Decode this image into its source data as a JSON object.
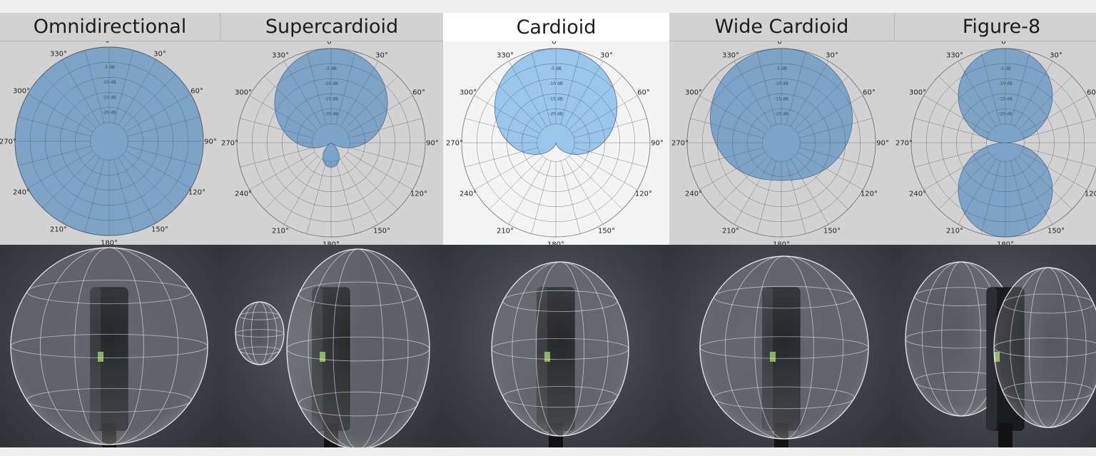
{
  "selected_tab": "Cardioid",
  "polar_labels": {
    "angles": [
      "0°",
      "30°",
      "60°",
      "90°",
      "120°",
      "150°",
      "180°",
      "210°",
      "240°",
      "270°",
      "300°",
      "330°"
    ],
    "rings": [
      "-5 dB",
      "-10 dB",
      "-15 dB",
      "-20 dB"
    ]
  },
  "patterns": [
    {
      "id": "omni",
      "title": "Omnidirectional",
      "shape": "omni"
    },
    {
      "id": "super",
      "title": "Supercardioid",
      "shape": "supercardioid"
    },
    {
      "id": "cardioid",
      "title": "Cardioid",
      "shape": "cardioid"
    },
    {
      "id": "wide",
      "title": "Wide Cardioid",
      "shape": "wide-cardioid"
    },
    {
      "id": "fig8",
      "title": "Figure-8",
      "shape": "figure-8"
    }
  ],
  "colors": {
    "lobe_fill": "#6f9cc6",
    "lobe_fill_active": "#8ec2ea",
    "grid": "#555555",
    "photo_bg": "#45484f"
  }
}
